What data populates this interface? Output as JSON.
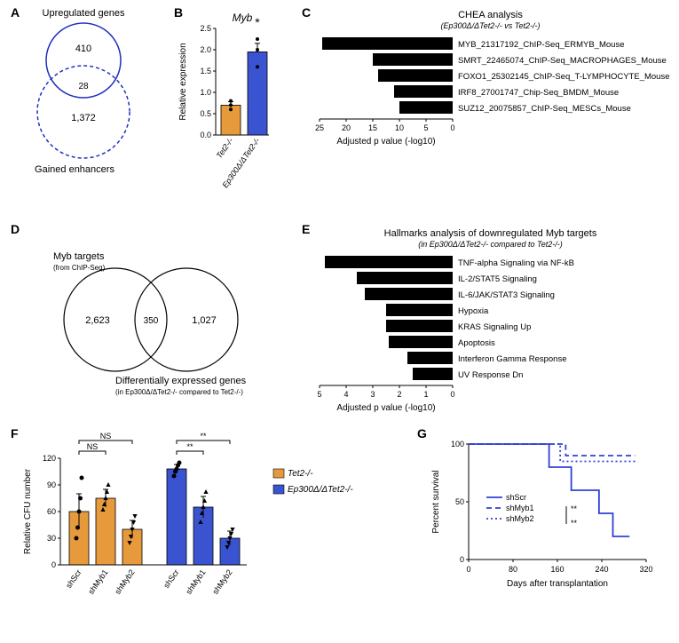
{
  "A": {
    "label": "A",
    "top_label": "Upregulated genes",
    "top_val": "410",
    "overlap_val": "28",
    "bottom_val": "1,372",
    "bottom_label": "Gained enhancers",
    "circle_color": "#2030c0"
  },
  "B": {
    "label": "B",
    "title": "Myb",
    "ylabel": "Relative expression",
    "ymax": 2.5,
    "ytick_step": 0.5,
    "bars": [
      {
        "cat": "Tet2-/-",
        "val": 0.7,
        "err": 0.08,
        "color": "#e79a3c",
        "pts": [
          0.6,
          0.7,
          0.8
        ]
      },
      {
        "cat": "Ep300Δ/ΔTet2-/-",
        "val": 1.95,
        "err": 0.2,
        "color": "#3a53d0",
        "pts": [
          1.6,
          2.0,
          2.25
        ]
      }
    ],
    "sig": "*"
  },
  "C": {
    "label": "C",
    "title": "CHEA analysis",
    "subtitle": "(Ep300Δ/ΔTet2-/- vs Tet2-/-)",
    "xlabel": "Adjusted p value (-log10)",
    "xmax": 25,
    "xtick_step": 5,
    "bar_color": "#000000",
    "items": [
      {
        "label": "MYB_21317192_ChIP-Seq_ERMYB_Mouse",
        "val": 24.5
      },
      {
        "label": "SMRT_22465074_ChIP-Seq_MACROPHAGES_Mouse",
        "val": 15
      },
      {
        "label": "FOXO1_25302145_ChIP-Seq_T-LYMPHOCYTE_Mouse",
        "val": 14
      },
      {
        "label": "IRF8_27001747_Chip-Seq_BMDM_Mouse",
        "val": 11
      },
      {
        "label": "SUZ12_20075857_ChIP-Seq_MESCs_Mouse",
        "val": 10
      }
    ]
  },
  "D": {
    "label": "D",
    "left_label": "Myb targets",
    "left_sub": "(from ChIP-Seq)",
    "left_val": "2,623",
    "overlap_val": "350",
    "right_val": "1,027",
    "right_label": "Differentially expressed genes",
    "right_sub": "(in Ep300Δ/ΔTet2-/- compared to Tet2-/-)",
    "circle_color": "#000000"
  },
  "E": {
    "label": "E",
    "title": "Hallmarks analysis of downregulated Myb targets",
    "subtitle": "(in Ep300Δ/ΔTet2-/- compared to Tet2-/-)",
    "xlabel": "Adjusted p value (-log10)",
    "xmax": 5,
    "xtick_step": 1,
    "bar_color": "#000000",
    "items": [
      {
        "label": "TNF-alpha Signaling via NF-kB",
        "val": 4.8
      },
      {
        "label": "IL-2/STAT5 Signaling",
        "val": 3.6
      },
      {
        "label": "IL-6/JAK/STAT3 Signaling",
        "val": 3.3
      },
      {
        "label": "Hypoxia",
        "val": 2.5
      },
      {
        "label": "KRAS Signaling Up",
        "val": 2.5
      },
      {
        "label": "Apoptosis",
        "val": 2.4
      },
      {
        "label": "Interferon Gamma Response",
        "val": 1.7
      },
      {
        "label": "UV Response Dn",
        "val": 1.5
      }
    ]
  },
  "F": {
    "label": "F",
    "ylabel": "Relative CFU number",
    "ymax": 120,
    "ytick_step": 30,
    "legend": [
      {
        "name": "Tet2-/-",
        "color": "#e79a3c"
      },
      {
        "name": "Ep300Δ/ΔTet2-/-",
        "color": "#3a53d0"
      }
    ],
    "groups": [
      {
        "sig1": "NS",
        "sig2": "NS",
        "bars": [
          {
            "cat": "shScr",
            "val": 60,
            "err": 20,
            "color": "#e79a3c",
            "pts": [
              30,
              42,
              60,
              75,
              98
            ],
            "shape": "circle"
          },
          {
            "cat": "shMyb1",
            "val": 75,
            "err": 10,
            "color": "#e79a3c",
            "pts": [
              62,
              68,
              75,
              82,
              90
            ],
            "shape": "triangle"
          },
          {
            "cat": "shMyb2",
            "val": 40,
            "err": 10,
            "color": "#e79a3c",
            "pts": [
              25,
              32,
              40,
              48,
              55
            ],
            "shape": "invtriangle"
          }
        ]
      },
      {
        "sig1": "**",
        "sig2": "**",
        "bars": [
          {
            "cat": "shScr",
            "val": 108,
            "err": 5,
            "color": "#3a53d0",
            "pts": [
              100,
              105,
              108,
              112,
              115
            ],
            "shape": "circle"
          },
          {
            "cat": "shMyb1",
            "val": 65,
            "err": 12,
            "color": "#3a53d0",
            "pts": [
              48,
              58,
              65,
              72,
              82
            ],
            "shape": "triangle"
          },
          {
            "cat": "shMyb2",
            "val": 30,
            "err": 8,
            "color": "#3a53d0",
            "pts": [
              20,
              25,
              30,
              35,
              40
            ],
            "shape": "invtriangle"
          }
        ]
      }
    ]
  },
  "G": {
    "label": "G",
    "ylabel": "Percent survival",
    "xlabel": "Days after transplantation",
    "xmax": 320,
    "xtick_step": 80,
    "ymax": 100,
    "ytick_step": 50,
    "line_color": "#3040d8",
    "sig": [
      "**",
      "**"
    ],
    "series": [
      {
        "name": "shScr",
        "dash": "0",
        "pts": [
          [
            0,
            100
          ],
          [
            145,
            100
          ],
          [
            145,
            80
          ],
          [
            185,
            80
          ],
          [
            185,
            60
          ],
          [
            235,
            60
          ],
          [
            235,
            40
          ],
          [
            260,
            40
          ],
          [
            260,
            20
          ],
          [
            290,
            20
          ]
        ]
      },
      {
        "name": "shMyb1",
        "dash": "6 4",
        "pts": [
          [
            0,
            100
          ],
          [
            175,
            100
          ],
          [
            175,
            90
          ],
          [
            300,
            90
          ]
        ]
      },
      {
        "name": "shMyb2",
        "dash": "2 3",
        "pts": [
          [
            0,
            100
          ],
          [
            165,
            100
          ],
          [
            165,
            85
          ],
          [
            300,
            85
          ]
        ]
      }
    ]
  }
}
